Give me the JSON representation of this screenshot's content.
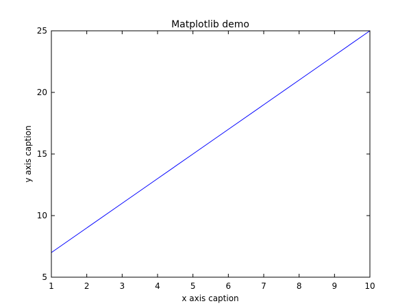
{
  "chart_data": {
    "type": "line",
    "title": "Matplotlib demo",
    "xlabel": "x axis caption",
    "ylabel": "y axis caption",
    "xlim": [
      1,
      10
    ],
    "ylim": [
      5,
      25
    ],
    "xticks": [
      "1",
      "2",
      "3",
      "4",
      "5",
      "6",
      "7",
      "8",
      "9",
      "10"
    ],
    "yticks": [
      "5",
      "10",
      "15",
      "20",
      "25"
    ],
    "grid": false,
    "series": [
      {
        "x": [
          1,
          2,
          3,
          4,
          5,
          6,
          7,
          8,
          9,
          10
        ],
        "y": [
          7,
          9,
          11,
          13,
          15,
          17,
          19,
          21,
          23,
          25
        ],
        "color": "#0000ff"
      }
    ]
  }
}
